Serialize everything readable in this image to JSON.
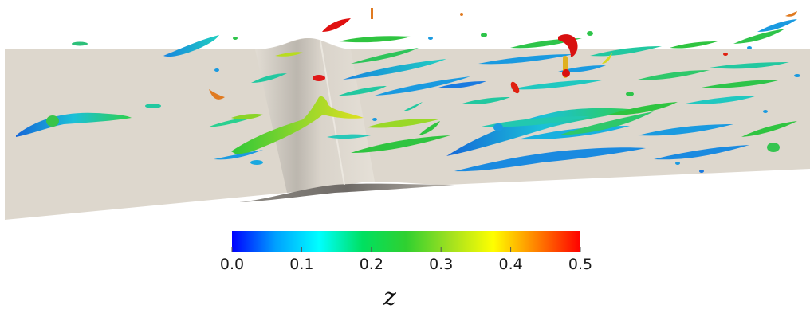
{
  "figure": {
    "description_kind": "rendered 3D flow visualization",
    "surface_color": "#ddd7cd",
    "bump_shadow_color": "#9a968f"
  },
  "colorbar": {
    "variable": "z",
    "min": 0.0,
    "max": 0.5,
    "tick_labels": [
      "0.0",
      "0.1",
      "0.2",
      "0.3",
      "0.4",
      "0.5"
    ],
    "tick_values": [
      0.0,
      0.1,
      0.2,
      0.3,
      0.4,
      0.5
    ],
    "colormap": [
      "#0000ff",
      "#00a0ff",
      "#00ffff",
      "#00e060",
      "#30d030",
      "#a0e020",
      "#ffff00",
      "#ff8000",
      "#ff0000"
    ]
  },
  "vortex_colors": {
    "low": "#1a7fe0",
    "low_mid": "#19c0e0",
    "mid": "#1fd07a",
    "mid_high": "#3ec52a",
    "high": "#d8d820",
    "top": "#e01010"
  }
}
